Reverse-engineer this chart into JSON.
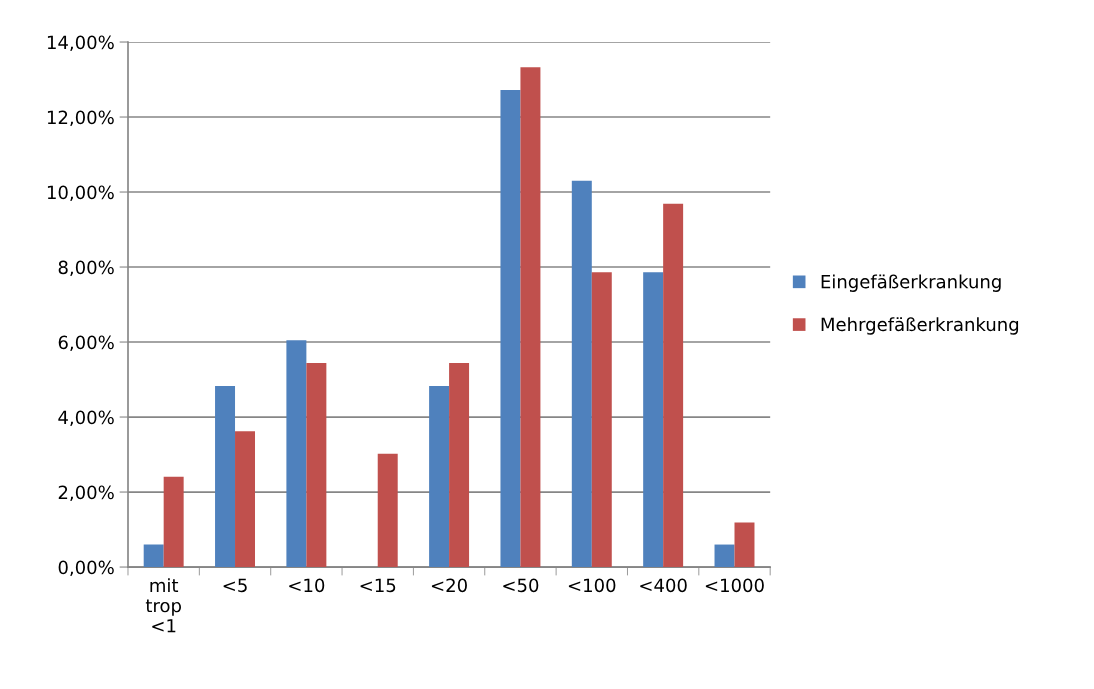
{
  "chart_data": {
    "type": "bar",
    "categories": [
      "mit\ntrop\n<1",
      "<5",
      "<10",
      "<15",
      "<20",
      "<50",
      "<100",
      "<400",
      "<1000"
    ],
    "series": [
      {
        "name": "Eingefäßerkrankung",
        "color": "#4f81bd",
        "values": [
          0.6,
          4.83,
          6.05,
          0,
          4.83,
          12.72,
          10.3,
          7.86,
          0.6
        ]
      },
      {
        "name": "Mehrgefäßerkrankung",
        "color": "#c0504d",
        "values": [
          2.41,
          3.62,
          5.44,
          3.02,
          5.44,
          13.33,
          7.86,
          9.69,
          1.19
        ]
      }
    ],
    "ylim": [
      0,
      14
    ],
    "yticks": [
      {
        "value": 0,
        "label": "0,00%"
      },
      {
        "value": 2,
        "label": "2,00%"
      },
      {
        "value": 4,
        "label": "4,00%"
      },
      {
        "value": 6,
        "label": "6,00%"
      },
      {
        "value": 8,
        "label": "8,00%"
      },
      {
        "value": 10,
        "label": "10,00%"
      },
      {
        "value": 12,
        "label": "12,00%"
      },
      {
        "value": 14,
        "label": "14,00%"
      }
    ],
    "grid": "y",
    "legend": "right"
  }
}
